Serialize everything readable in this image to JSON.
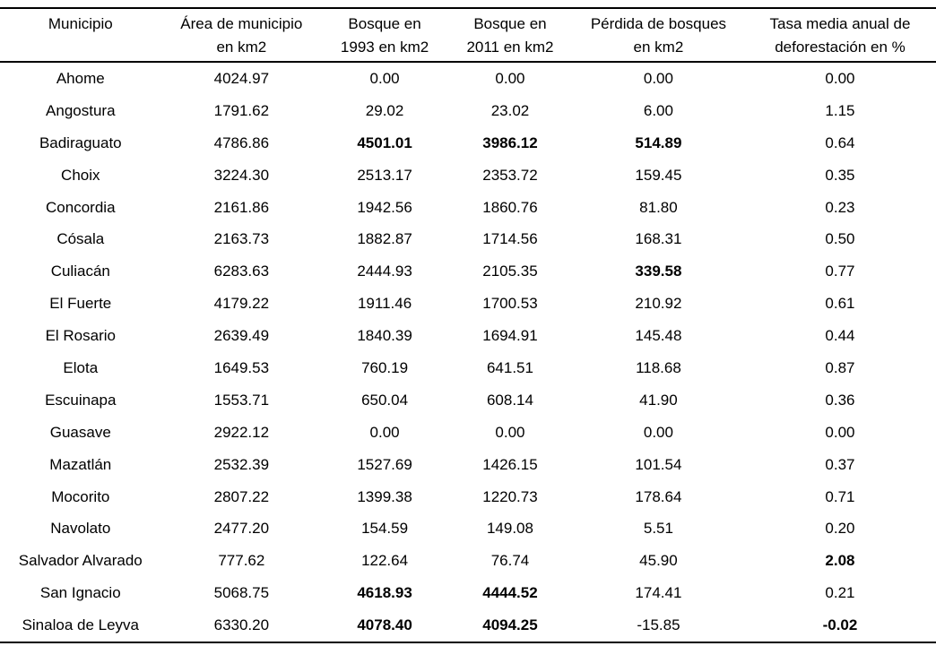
{
  "chart_data": {
    "type": "table",
    "columns": [
      "Municipio",
      "Área de municipio en km2",
      "Bosque en 1993 en km2",
      "Bosque en 2011 en km2",
      "Pérdida de bosques en km2",
      "Tasa media anual de deforestación en %"
    ],
    "header_lines": [
      [
        "Municipio",
        ""
      ],
      [
        "Área de municipio",
        "en km2"
      ],
      [
        "Bosque en",
        "1993 en km2"
      ],
      [
        "Bosque en",
        "2011 en km2"
      ],
      [
        "Pérdida de bosques",
        "en km2"
      ],
      [
        "Tasa media anual de",
        "deforestación en %"
      ]
    ],
    "rows": [
      {
        "cells": [
          "Ahome",
          "4024.97",
          "0.00",
          "0.00",
          "0.00",
          "0.00"
        ],
        "bold": []
      },
      {
        "cells": [
          "Angostura",
          "1791.62",
          "29.02",
          "23.02",
          "6.00",
          "1.15"
        ],
        "bold": []
      },
      {
        "cells": [
          "Badiraguato",
          "4786.86",
          "4501.01",
          "3986.12",
          "514.89",
          "0.64"
        ],
        "bold": [
          2,
          3,
          4
        ]
      },
      {
        "cells": [
          "Choix",
          "3224.30",
          "2513.17",
          "2353.72",
          "159.45",
          "0.35"
        ],
        "bold": []
      },
      {
        "cells": [
          "Concordia",
          "2161.86",
          "1942.56",
          "1860.76",
          "81.80",
          "0.23"
        ],
        "bold": []
      },
      {
        "cells": [
          "Cósala",
          "2163.73",
          "1882.87",
          "1714.56",
          "168.31",
          "0.50"
        ],
        "bold": []
      },
      {
        "cells": [
          "Culiacán",
          "6283.63",
          "2444.93",
          "2105.35",
          "339.58",
          "0.77"
        ],
        "bold": [
          4
        ]
      },
      {
        "cells": [
          "El Fuerte",
          "4179.22",
          "1911.46",
          "1700.53",
          "210.92",
          "0.61"
        ],
        "bold": []
      },
      {
        "cells": [
          "El Rosario",
          "2639.49",
          "1840.39",
          "1694.91",
          "145.48",
          "0.44"
        ],
        "bold": []
      },
      {
        "cells": [
          "Elota",
          "1649.53",
          "760.19",
          "641.51",
          "118.68",
          "0.87"
        ],
        "bold": []
      },
      {
        "cells": [
          "Escuinapa",
          "1553.71",
          "650.04",
          "608.14",
          "41.90",
          "0.36"
        ],
        "bold": []
      },
      {
        "cells": [
          "Guasave",
          "2922.12",
          "0.00",
          "0.00",
          "0.00",
          "0.00"
        ],
        "bold": []
      },
      {
        "cells": [
          "Mazatlán",
          "2532.39",
          "1527.69",
          "1426.15",
          "101.54",
          "0.37"
        ],
        "bold": []
      },
      {
        "cells": [
          "Mocorito",
          "2807.22",
          "1399.38",
          "1220.73",
          "178.64",
          "0.71"
        ],
        "bold": []
      },
      {
        "cells": [
          "Navolato",
          "2477.20",
          "154.59",
          "149.08",
          "5.51",
          "0.20"
        ],
        "bold": []
      },
      {
        "cells": [
          "Salvador Alvarado",
          "777.62",
          "122.64",
          "76.74",
          "45.90",
          "2.08"
        ],
        "bold": [
          5
        ]
      },
      {
        "cells": [
          "San Ignacio",
          "5068.75",
          "4618.93",
          "4444.52",
          "174.41",
          "0.21"
        ],
        "bold": [
          2,
          3
        ]
      },
      {
        "cells": [
          "Sinaloa de Leyva",
          "6330.20",
          "4078.40",
          "4094.25",
          "-15.85",
          "-0.02"
        ],
        "bold": [
          2,
          3,
          5
        ]
      }
    ]
  }
}
